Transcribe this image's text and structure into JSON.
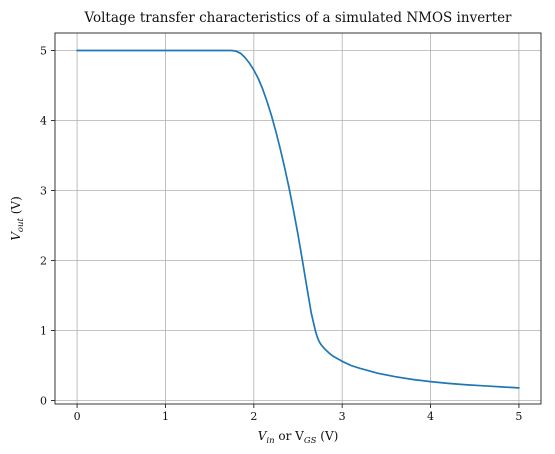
{
  "chart_data": {
    "type": "line",
    "title": "Voltage transfer characteristics of a simulated NMOS inverter",
    "xlabel": {
      "main": "V",
      "sub": "in",
      "mid": " or V",
      "sub2": "GS",
      "tail": " (V)"
    },
    "ylabel": {
      "main": "V",
      "sub": "out",
      "tail": " (V)"
    },
    "xlim": [
      -0.25,
      5.25
    ],
    "ylim": [
      -0.05,
      5.25
    ],
    "xticks": [
      0,
      1,
      2,
      3,
      4,
      5
    ],
    "yticks": [
      0,
      1,
      2,
      3,
      4,
      5
    ],
    "xtick_labels": [
      "0",
      "1",
      "2",
      "3",
      "4",
      "5"
    ],
    "ytick_labels": [
      "0",
      "1",
      "2",
      "3",
      "4",
      "5"
    ],
    "grid": true,
    "colors": {
      "series": "#1f77b4",
      "grid": "#b0b0b0",
      "frame": "#222222"
    },
    "series": [
      {
        "x": [
          0,
          0.5,
          1.0,
          1.5,
          1.75,
          1.8,
          1.85,
          1.9,
          1.95,
          2.0,
          2.05,
          2.1,
          2.15,
          2.2,
          2.25,
          2.3,
          2.35,
          2.4,
          2.45,
          2.5,
          2.55,
          2.6,
          2.65,
          2.7,
          2.72,
          2.74,
          2.76,
          2.8,
          2.85,
          2.9,
          3.0,
          3.1,
          3.2,
          3.4,
          3.6,
          3.8,
          4.0,
          4.2,
          4.4,
          4.6,
          4.8,
          5.0
        ],
        "y": [
          5.0,
          5.0,
          5.0,
          5.0,
          5.0,
          4.99,
          4.96,
          4.9,
          4.82,
          4.72,
          4.6,
          4.45,
          4.27,
          4.07,
          3.84,
          3.59,
          3.32,
          3.03,
          2.71,
          2.37,
          2.0,
          1.62,
          1.25,
          0.98,
          0.9,
          0.84,
          0.8,
          0.74,
          0.68,
          0.63,
          0.56,
          0.5,
          0.46,
          0.39,
          0.34,
          0.3,
          0.27,
          0.245,
          0.225,
          0.21,
          0.195,
          0.18
        ]
      }
    ]
  }
}
